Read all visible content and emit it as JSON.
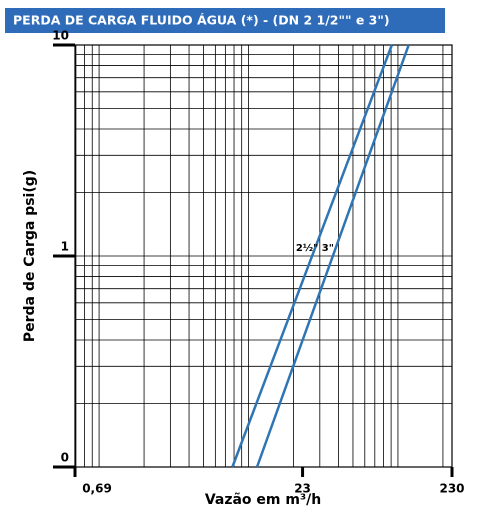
{
  "chart_data": {
    "type": "line",
    "title": "PERDA DE CARGA FLUIDO ÁGUA (*) -  (DN 2 1/2\"\" e 3\")",
    "x_label": "Vazão em m³/h",
    "y_label": "Perda de Carga psi(g)",
    "log_x": true,
    "log_y": true,
    "grid": true,
    "xlim": [
      0.69,
      230
    ],
    "xticks": [
      {
        "value": 0.69,
        "label": "0,69"
      },
      23,
      230
    ],
    "ylim": [
      0.1,
      10
    ],
    "yticks": [
      {
        "value": 0.1,
        "label": "0"
      },
      1,
      10
    ],
    "series": [
      {
        "name": "2½\"",
        "color": "#2e75b6",
        "x": [
          7.8,
          91
        ],
        "values": [
          0.1,
          10
        ]
      },
      {
        "name": "3\"",
        "color": "#2e75b6",
        "x": [
          11.4,
          118
        ],
        "values": [
          0.1,
          10
        ]
      }
    ]
  }
}
